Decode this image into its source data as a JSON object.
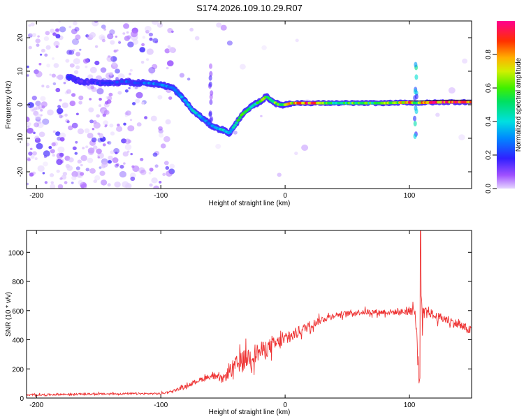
{
  "title": "S174.2026.109.10.29.R07",
  "colorbar": {
    "label": "Normalized spectral amplitude",
    "ticks": [
      "0.0",
      "0.2",
      "0.4",
      "0.6",
      "0.8"
    ],
    "tick_values": [
      0.0,
      0.2,
      0.4,
      0.6,
      0.8
    ],
    "range": [
      0,
      1
    ]
  },
  "chart_data": [
    {
      "type": "heatmap",
      "title": "S174.2026.109.10.29.R07",
      "xlabel": "Height of straight line (km)",
      "ylabel": "Frequency (Hz)",
      "xlim": [
        -208,
        150
      ],
      "ylim": [
        -25,
        25
      ],
      "xticks": [
        -200,
        -100,
        0,
        100
      ],
      "xtick_labels": [
        "-200",
        "-100",
        "0",
        "100"
      ],
      "yticks": [
        -20,
        -10,
        0,
        10,
        20
      ],
      "ytick_labels": [
        "-20",
        "-10",
        "0",
        "10",
        "20"
      ],
      "colorscale": "rainbow (0 = light violet, 1 = magenta-red)",
      "ridge": {
        "x": [
          -180,
          -165,
          -150,
          -140,
          -130,
          -120,
          -110,
          -100,
          -95,
          -90,
          -85,
          -80,
          -75,
          -70,
          -65,
          -60,
          -55,
          -50,
          -45,
          -40,
          -35,
          -30,
          -25,
          -20,
          -15,
          -10,
          -5,
          0,
          5,
          10,
          20,
          30,
          40,
          50,
          60,
          70,
          80,
          90,
          100,
          105,
          110,
          120,
          130,
          140,
          150
        ],
        "y": [
          9,
          7,
          6.5,
          6.5,
          7,
          6.5,
          6.5,
          6,
          5.5,
          5,
          3,
          1,
          -1.5,
          -3,
          -4.5,
          -6,
          -7,
          -7.5,
          -8.5,
          -6,
          -3,
          -1.5,
          0,
          1,
          2.5,
          1,
          0,
          0,
          0.5,
          0.5,
          0.5,
          0.5,
          0.5,
          0.5,
          0.5,
          0.5,
          0.5,
          0.6,
          0.7,
          0.5,
          0.6,
          0.7,
          0.8,
          0.8,
          0.8
        ],
        "amplitude": [
          0.3,
          0.15,
          0.18,
          0.2,
          0.25,
          0.2,
          0.3,
          0.3,
          0.3,
          0.25,
          0.3,
          0.35,
          0.4,
          0.35,
          0.3,
          0.3,
          0.4,
          0.4,
          0.35,
          0.5,
          0.55,
          0.5,
          0.45,
          0.55,
          0.65,
          0.6,
          0.55,
          0.7,
          0.75,
          0.8,
          0.9,
          0.6,
          0.5,
          0.55,
          0.6,
          0.55,
          0.6,
          0.65,
          0.85,
          0.5,
          0.85,
          0.9,
          0.9,
          0.9,
          0.9
        ]
      }
    },
    {
      "type": "line",
      "xlabel": "Height of straight line (km)",
      "ylabel": "SNR (10 * v/v)",
      "xlim": [
        -208,
        150
      ],
      "ylim": [
        0,
        1150
      ],
      "xticks": [
        -200,
        -100,
        0,
        100
      ],
      "xtick_labels": [
        "-200",
        "-100",
        "0",
        "100"
      ],
      "yticks": [
        0,
        200,
        400,
        600,
        800,
        1000
      ],
      "ytick_labels": [
        "0",
        "200",
        "400",
        "600",
        "800",
        "1000"
      ],
      "series": [
        {
          "name": "SNR",
          "color": "#ee3333",
          "x": [
            -208,
            -180,
            -150,
            -120,
            -100,
            -90,
            -80,
            -70,
            -60,
            -50,
            -45,
            -40,
            -35,
            -30,
            -25,
            -20,
            -10,
            0,
            10,
            20,
            30,
            40,
            50,
            60,
            70,
            80,
            90,
            95,
            100,
            104,
            106,
            108,
            109,
            110,
            112,
            115,
            120,
            130,
            140,
            150
          ],
          "y": [
            20,
            25,
            28,
            30,
            30,
            50,
            80,
            120,
            150,
            130,
            180,
            220,
            250,
            280,
            300,
            320,
            360,
            400,
            450,
            500,
            540,
            570,
            580,
            590,
            590,
            590,
            590,
            590,
            600,
            610,
            400,
            150,
            900,
            500,
            580,
            600,
            560,
            540,
            500,
            460
          ],
          "noise_amplitude": [
            8,
            8,
            8,
            8,
            8,
            10,
            15,
            20,
            25,
            30,
            60,
            80,
            90,
            90,
            90,
            80,
            70,
            60,
            50,
            40,
            30,
            25,
            25,
            25,
            25,
            25,
            25,
            30,
            35,
            60,
            150,
            80,
            250,
            150,
            60,
            40,
            40,
            40,
            40,
            40
          ]
        }
      ]
    }
  ]
}
